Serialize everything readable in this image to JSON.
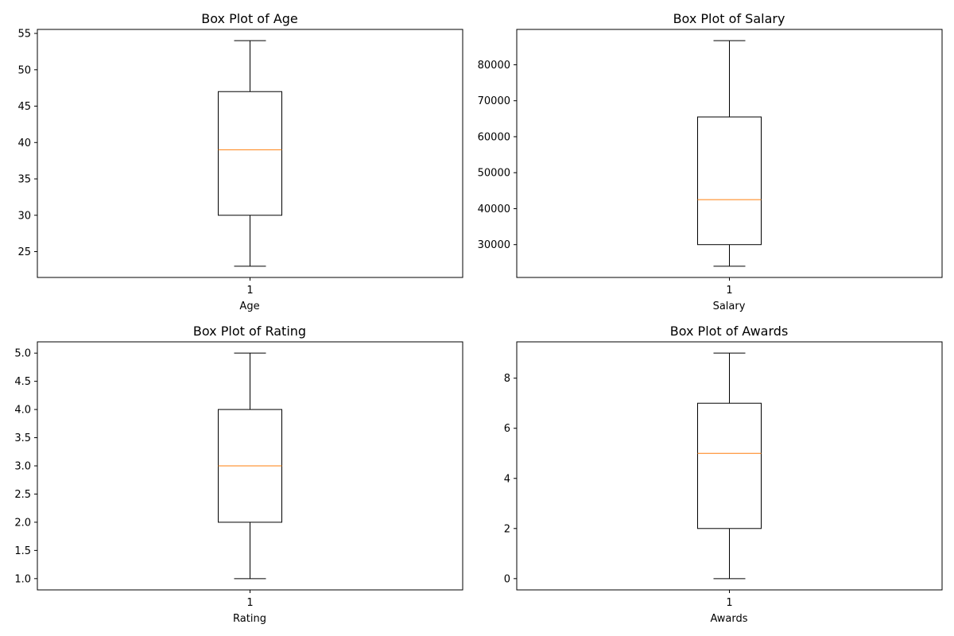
{
  "figure": {
    "box_color": "#000000",
    "median_color": "#ff7f0e",
    "background": "#ffffff"
  },
  "chart_data": [
    {
      "type": "box",
      "title": "Box Plot of Age",
      "xlabel": "Age",
      "ylabel": "",
      "x_ticks": [
        "1"
      ],
      "ylim": [
        21.45,
        55.55
      ],
      "y_ticks": [
        25,
        30,
        35,
        40,
        45,
        50,
        55
      ],
      "y_tick_labels": [
        "25",
        "30",
        "35",
        "40",
        "45",
        "50",
        "55"
      ],
      "grid": false,
      "box": {
        "whisker_low": 23,
        "q1": 30,
        "median": 39,
        "q3": 47,
        "whisker_high": 54
      }
    },
    {
      "type": "box",
      "title": "Box Plot of Salary",
      "xlabel": "Salary",
      "ylabel": "",
      "x_ticks": [
        "1"
      ],
      "ylim": [
        20875,
        89825
      ],
      "y_ticks": [
        30000,
        40000,
        50000,
        60000,
        70000,
        80000
      ],
      "y_tick_labels": [
        "30000",
        "40000",
        "50000",
        "60000",
        "70000",
        "80000"
      ],
      "grid": false,
      "box": {
        "whisker_low": 24000,
        "q1": 30000,
        "median": 42500,
        "q3": 65500,
        "whisker_high": 86700
      }
    },
    {
      "type": "box",
      "title": "Box Plot of Rating",
      "xlabel": "Rating",
      "ylabel": "",
      "x_ticks": [
        "1"
      ],
      "ylim": [
        0.8,
        5.2
      ],
      "y_ticks": [
        1.0,
        1.5,
        2.0,
        2.5,
        3.0,
        3.5,
        4.0,
        4.5,
        5.0
      ],
      "y_tick_labels": [
        "1.0",
        "1.5",
        "2.0",
        "2.5",
        "3.0",
        "3.5",
        "4.0",
        "4.5",
        "5.0"
      ],
      "grid": false,
      "box": {
        "whisker_low": 1,
        "q1": 2,
        "median": 3,
        "q3": 4,
        "whisker_high": 5
      }
    },
    {
      "type": "box",
      "title": "Box Plot of Awards",
      "xlabel": "Awards",
      "ylabel": "",
      "x_ticks": [
        "1"
      ],
      "ylim": [
        -0.45,
        9.45
      ],
      "y_ticks": [
        0,
        2,
        4,
        6,
        8
      ],
      "y_tick_labels": [
        "0",
        "2",
        "4",
        "6",
        "8"
      ],
      "grid": false,
      "box": {
        "whisker_low": 0,
        "q1": 2,
        "median": 5,
        "q3": 7,
        "whisker_high": 9
      }
    }
  ]
}
